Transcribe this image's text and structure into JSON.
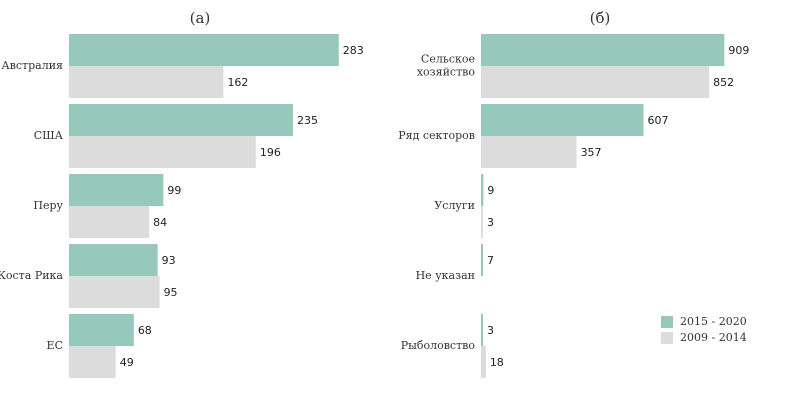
{
  "colors": {
    "series_2015_2020": "#96c8bb",
    "series_2009_2014": "#dcdcdc"
  },
  "legend": {
    "items": [
      {
        "label": "2015 - 2020",
        "color": "#96c8bb"
      },
      {
        "label": "2009 - 2014",
        "color": "#dcdcdc"
      }
    ],
    "placement": "bottom-right"
  },
  "chart_data": [
    {
      "type": "bar",
      "orientation": "horizontal",
      "title": "(а)",
      "categories": [
        "Австралия",
        "США",
        "Перу",
        "Коста Рика",
        "ЕС"
      ],
      "series": [
        {
          "name": "2015 - 2020",
          "values": [
            283,
            235,
            99,
            93,
            68
          ]
        },
        {
          "name": "2009 - 2014",
          "values": [
            162,
            196,
            84,
            95,
            49
          ]
        }
      ],
      "xlim": [
        0,
        300
      ],
      "grid": false
    },
    {
      "type": "bar",
      "orientation": "horizontal",
      "title": "(б)",
      "categories": [
        "Сельское\nхозяйство",
        "Ряд секторов",
        "Услуги",
        "Не указан",
        "Рыболовство"
      ],
      "series": [
        {
          "name": "2015 - 2020",
          "values": [
            909,
            607,
            9,
            7,
            3
          ]
        },
        {
          "name": "2009 - 2014",
          "values": [
            852,
            357,
            3,
            null,
            18
          ]
        }
      ],
      "xlim": [
        0,
        960
      ],
      "grid": false
    }
  ]
}
